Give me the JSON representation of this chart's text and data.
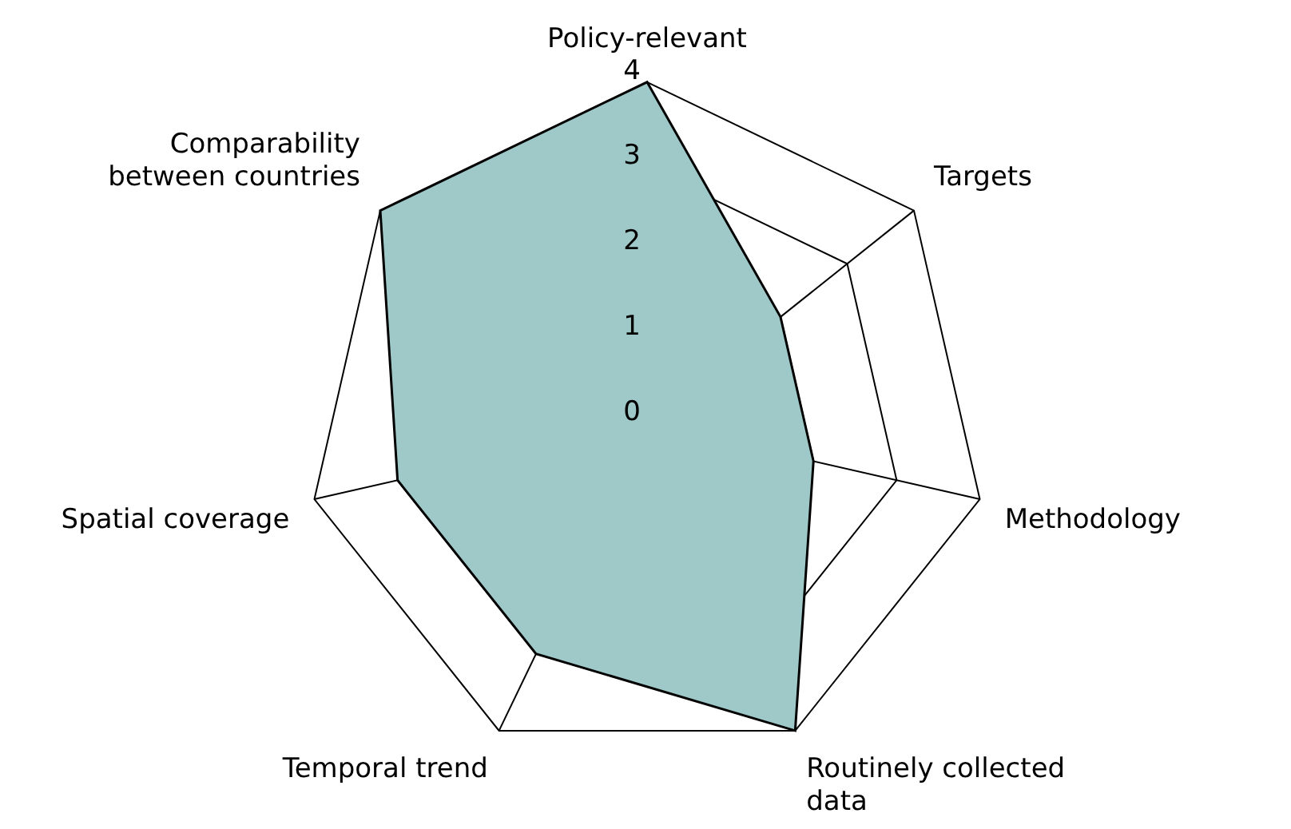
{
  "chart_data": {
    "type": "radar",
    "categories": [
      "Policy-relevant",
      "Targets",
      "Methodology",
      "Routinely collected data",
      "Temporal trend",
      "Spatial coverage",
      "Comparability between countries"
    ],
    "series": [
      {
        "color": "#9fc8c8",
        "values": [
          4,
          2,
          2,
          4,
          3,
          3,
          4
        ]
      }
    ],
    "ylim": [
      0,
      4
    ],
    "yticks": [
      0,
      1,
      2,
      3,
      4
    ],
    "grid": true,
    "legend": false,
    "marker": "none",
    "line_style": "solid"
  }
}
